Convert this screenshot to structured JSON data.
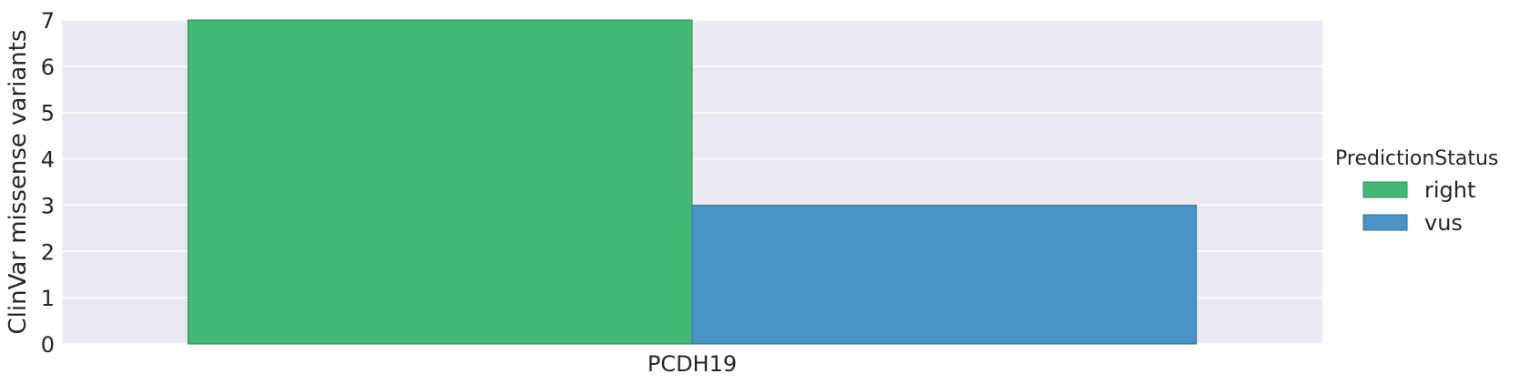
{
  "chart_data": {
    "type": "bar",
    "categories": [
      "PCDH19"
    ],
    "series": [
      {
        "name": "right",
        "values": [
          7
        ],
        "color": "#44b875",
        "edge": "#2f8a55"
      },
      {
        "name": "vus",
        "values": [
          3
        ],
        "color": "#4894c6",
        "edge": "#336e96"
      }
    ],
    "xlabel": "",
    "ylabel": "ClinVar missense variants",
    "ylim": [
      0,
      7
    ],
    "yticks": [
      0,
      1,
      2,
      3,
      4,
      5,
      6,
      7
    ],
    "grid": true,
    "legend": {
      "title": "PredictionStatus",
      "placement": "right"
    },
    "background": "#eaeaf2",
    "gridcolor": "#ffffff"
  }
}
